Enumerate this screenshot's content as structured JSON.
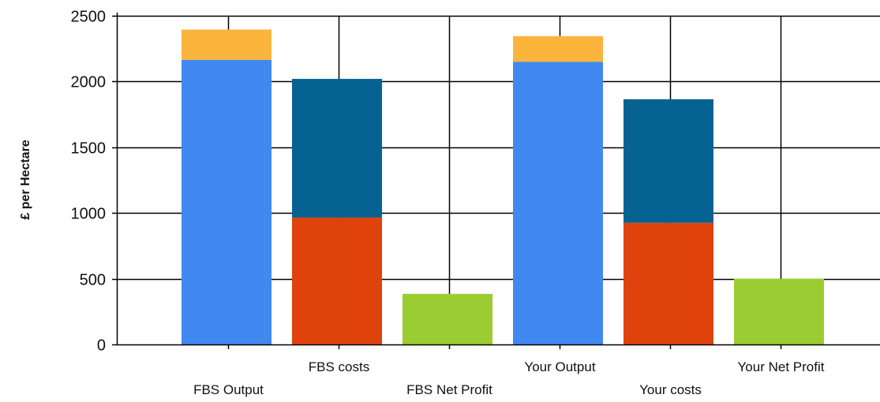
{
  "chart_data": {
    "type": "bar",
    "stacked": true,
    "ylabel": "£ per Hectare",
    "xlabel": "",
    "ylim": [
      0,
      2500
    ],
    "yticks": [
      0,
      500,
      1000,
      1500,
      2000,
      2500
    ],
    "grid": true,
    "categories": [
      "FBS Output",
      "FBS costs",
      "FBS Net Profit",
      "Your Output",
      "Your costs",
      "Your Net Profit"
    ],
    "category_label_rows": [
      "lower",
      "upper",
      "lower",
      "upper",
      "lower",
      "upper"
    ],
    "bars": [
      {
        "category": "FBS Output",
        "segments": [
          {
            "value": 2165,
            "color": "#4189F0"
          },
          {
            "value": 230,
            "color": "#FAB43C"
          }
        ]
      },
      {
        "category": "FBS costs",
        "segments": [
          {
            "value": 965,
            "color": "#E0420C"
          },
          {
            "value": 1055,
            "color": "#066391"
          }
        ]
      },
      {
        "category": "FBS Net Profit",
        "segments": [
          {
            "value": 385,
            "color": "#9BCD32"
          }
        ]
      },
      {
        "category": "Your Output",
        "segments": [
          {
            "value": 2150,
            "color": "#4189F0"
          },
          {
            "value": 195,
            "color": "#FAB43C"
          }
        ]
      },
      {
        "category": "Your costs",
        "segments": [
          {
            "value": 925,
            "color": "#E0420C"
          },
          {
            "value": 940,
            "color": "#066391"
          }
        ]
      },
      {
        "category": "Your Net Profit",
        "segments": [
          {
            "value": 500,
            "color": "#9BCD32"
          }
        ]
      }
    ]
  }
}
